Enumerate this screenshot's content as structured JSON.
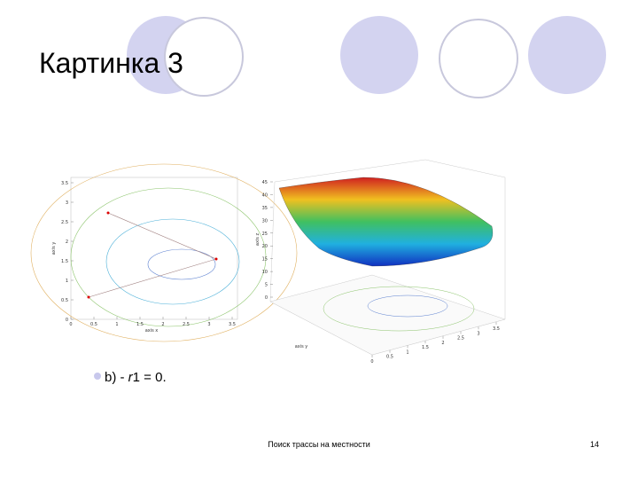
{
  "header": {
    "title": "Картинка 3"
  },
  "figures": {
    "contour": {
      "xlabel": "axis x",
      "ylabel": "axis y",
      "xticks": [
        0,
        0.5,
        1,
        1.5,
        2,
        2.5,
        3,
        3.5
      ],
      "yticks": [
        0,
        0.5,
        1,
        1.5,
        2,
        2.5,
        3,
        3.5
      ]
    },
    "surface": {
      "zlabel": "axis z",
      "ylabel": "axis y",
      "zticks": [
        0,
        5,
        10,
        15,
        20,
        25,
        30,
        35,
        40,
        45
      ],
      "xticks": [
        0,
        0.5,
        1,
        1.5,
        2,
        2.5,
        3,
        3.5
      ]
    }
  },
  "bullet": {
    "parts": [
      "b) - ",
      "r",
      "1 = 0."
    ]
  },
  "footer": {
    "text": "Поиск трассы на местности",
    "page": 14
  }
}
